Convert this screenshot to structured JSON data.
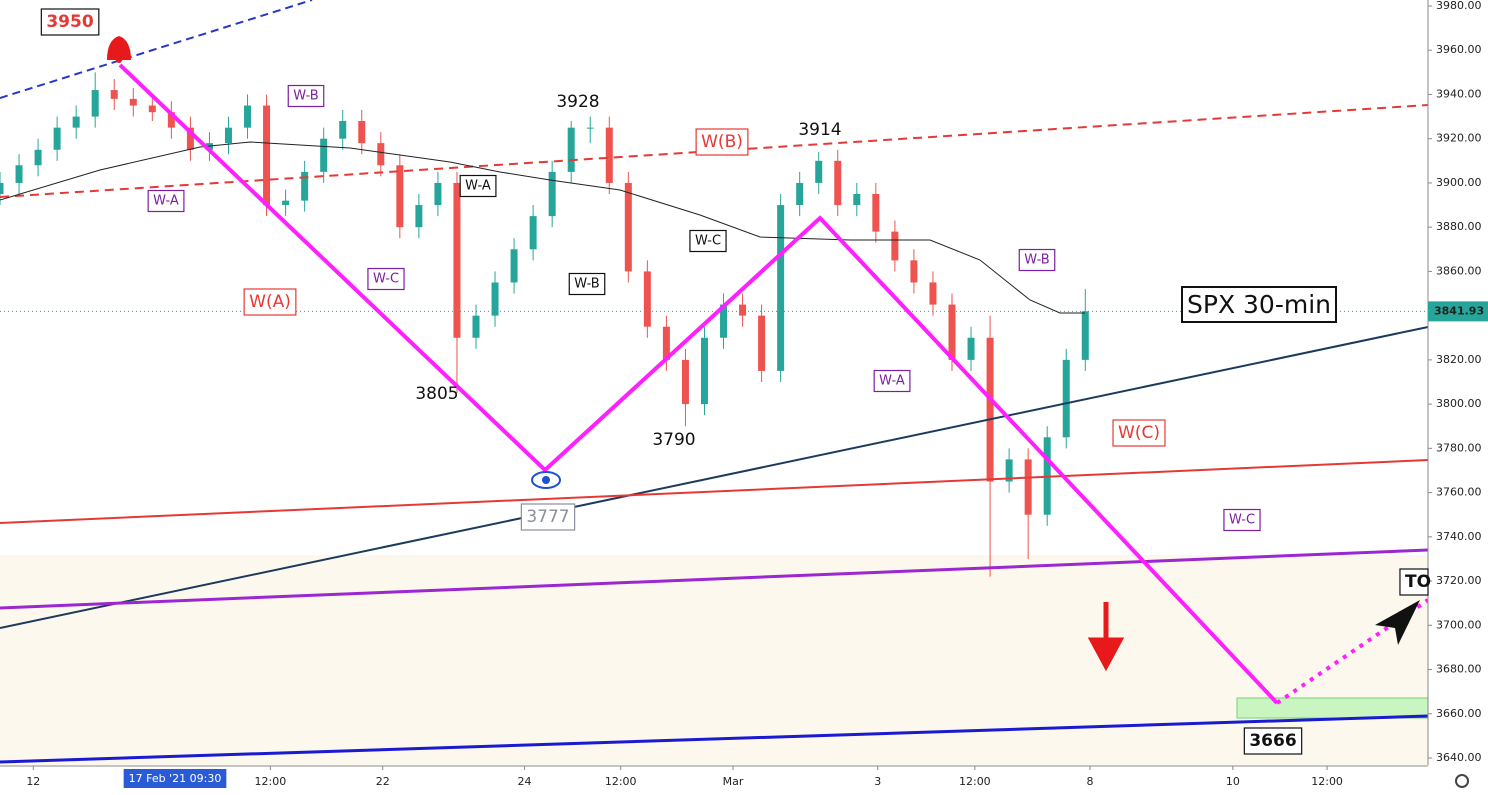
{
  "chart_data": {
    "type": "candlestick",
    "x": [
      0,
      2,
      4,
      6,
      8,
      10,
      12,
      14,
      16,
      18,
      20,
      22,
      24,
      26,
      28,
      30,
      32,
      34,
      36,
      38,
      40,
      42,
      44,
      46,
      48,
      50,
      52,
      54,
      56,
      58,
      60,
      62,
      64,
      66,
      68,
      70,
      72,
      74,
      76,
      78,
      80,
      82,
      84,
      86,
      88,
      90,
      92,
      94,
      96,
      98,
      100,
      102,
      104,
      106,
      108,
      110,
      112,
      114
    ],
    "open": [
      3895,
      3900,
      3908,
      3915,
      3925,
      3930,
      3942,
      3938,
      3935,
      3932,
      3925,
      3915,
      3918,
      3925,
      3935,
      3890,
      3892,
      3905,
      3920,
      3928,
      3918,
      3908,
      3880,
      3890,
      3900,
      3830,
      3840,
      3855,
      3870,
      3885,
      3905,
      3925,
      3925,
      3900,
      3860,
      3835,
      3820,
      3800,
      3830,
      3845,
      3840,
      3815,
      3890,
      3900,
      3910,
      3890,
      3895,
      3878,
      3865,
      3855,
      3845,
      3820,
      3830,
      3765,
      3775,
      3750,
      3785,
      3820
    ],
    "high": [
      3905,
      3913,
      3920,
      3930,
      3935,
      3950,
      3947,
      3943,
      3940,
      3937,
      3930,
      3923,
      3930,
      3940,
      3940,
      3897,
      3910,
      3925,
      3933,
      3933,
      3923,
      3913,
      3895,
      3905,
      3905,
      3845,
      3860,
      3875,
      3890,
      3910,
      3928,
      3930,
      3930,
      3905,
      3865,
      3840,
      3825,
      3835,
      3850,
      3850,
      3845,
      3895,
      3905,
      3914,
      3915,
      3900,
      3900,
      3883,
      3870,
      3860,
      3850,
      3835,
      3840,
      3780,
      3780,
      3790,
      3825,
      3852
    ],
    "low": [
      3890,
      3895,
      3903,
      3910,
      3920,
      3925,
      3933,
      3930,
      3928,
      3920,
      3910,
      3910,
      3913,
      3920,
      3885,
      3885,
      3887,
      3900,
      3915,
      3913,
      3903,
      3875,
      3875,
      3885,
      3805,
      3825,
      3835,
      3850,
      3865,
      3880,
      3900,
      3918,
      3895,
      3855,
      3830,
      3815,
      3790,
      3795,
      3825,
      3835,
      3810,
      3810,
      3885,
      3895,
      3885,
      3885,
      3873,
      3860,
      3850,
      3840,
      3815,
      3815,
      3722,
      3760,
      3730,
      3745,
      3780,
      3815
    ],
    "close": [
      3900,
      3908,
      3915,
      3925,
      3930,
      3942,
      3938,
      3935,
      3932,
      3925,
      3915,
      3918,
      3925,
      3935,
      3890,
      3892,
      3905,
      3920,
      3928,
      3918,
      3908,
      3880,
      3890,
      3900,
      3830,
      3840,
      3855,
      3870,
      3885,
      3905,
      3925,
      3925,
      3900,
      3860,
      3835,
      3820,
      3800,
      3830,
      3845,
      3840,
      3815,
      3890,
      3900,
      3910,
      3890,
      3895,
      3878,
      3865,
      3855,
      3845,
      3820,
      3830,
      3765,
      3775,
      3750,
      3785,
      3820,
      3842
    ],
    "up_color": "#26a69a",
    "down_color": "#ef5350",
    "last_price": 3841.93,
    "last_price_color": "#26a69a",
    "xlim": [
      0,
      150
    ],
    "xticks": [
      {
        "value": 3.5,
        "label": "12"
      },
      {
        "value": 28.4,
        "label": "12:00"
      },
      {
        "value": 40.2,
        "label": "22"
      },
      {
        "value": 55.1,
        "label": "24"
      },
      {
        "value": 65.2,
        "label": "12:00"
      },
      {
        "value": 77,
        "label": "Mar"
      },
      {
        "value": 92.2,
        "label": "3"
      },
      {
        "value": 102.4,
        "label": "12:00"
      },
      {
        "value": 114.5,
        "label": "8"
      },
      {
        "value": 129.5,
        "label": "10"
      },
      {
        "value": 139.4,
        "label": "12:00"
      }
    ],
    "ylim": [
      3640,
      3980
    ],
    "yticks": [
      {
        "value": 3640,
        "label": "3640.00"
      },
      {
        "value": 3660,
        "label": "3660.00"
      },
      {
        "value": 3680,
        "label": "3680.00"
      },
      {
        "value": 3700,
        "label": "3700.00"
      },
      {
        "value": 3720,
        "label": "3720.00"
      },
      {
        "value": 3740,
        "label": "3740.00"
      },
      {
        "value": 3760,
        "label": "3760.00"
      },
      {
        "value": 3780,
        "label": "3780.00"
      },
      {
        "value": 3800,
        "label": "3800.00"
      },
      {
        "value": 3820,
        "label": "3820.00"
      },
      {
        "value": 3840,
        "label": "3840.00"
      },
      {
        "value": 3860,
        "label": "3860.00"
      },
      {
        "value": 3880,
        "label": "3880.00"
      },
      {
        "value": 3900,
        "label": "3900.00"
      },
      {
        "value": 3920,
        "label": "3920.00"
      },
      {
        "value": 3940,
        "label": "3940.00"
      },
      {
        "value": 3960,
        "label": "3960.00"
      },
      {
        "value": 3980,
        "label": "3980.00"
      }
    ],
    "annotations": [
      "3950",
      "W-B",
      "W-A",
      "3928",
      "W(B)",
      "3914",
      "W-A",
      "W-C",
      "W-C",
      "W-B",
      "W(A)",
      "3805",
      "3790",
      "3777",
      "W-B",
      "SPX 30-min",
      "W-A",
      "W(C)",
      "W-C",
      "TO",
      "3666",
      "17 Feb '21  09:30"
    ]
  }
}
